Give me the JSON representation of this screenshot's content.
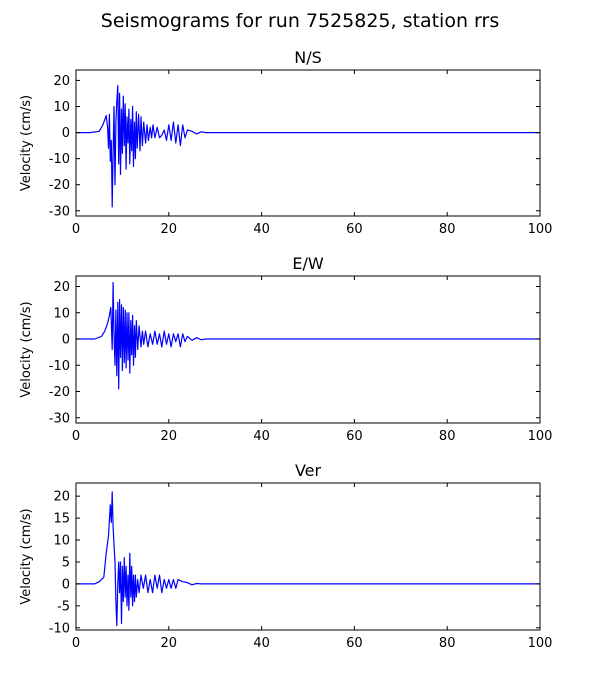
{
  "figure": {
    "title": "Seismograms for run 7525825, station rrs"
  },
  "chart_data": [
    {
      "type": "line",
      "title": "N/S",
      "xlabel": "",
      "ylabel": "Velocity (cm/s)",
      "xlim": [
        0,
        100
      ],
      "ylim": [
        -32,
        24
      ],
      "xticks": [
        0,
        20,
        40,
        60,
        80,
        100
      ],
      "yticks": [
        -30,
        -20,
        -10,
        0,
        10,
        20
      ],
      "grid": false,
      "color": "#0000ff",
      "x": [
        0,
        3,
        5,
        5.8,
        6.2,
        6.5,
        6.8,
        7.0,
        7.2,
        7.4,
        7.6,
        7.8,
        8.0,
        8.2,
        8.4,
        8.6,
        8.8,
        9.0,
        9.2,
        9.4,
        9.6,
        9.8,
        10.0,
        10.2,
        10.4,
        10.6,
        10.8,
        11.0,
        11.2,
        11.4,
        11.6,
        11.8,
        12.0,
        12.2,
        12.4,
        12.6,
        12.8,
        13.0,
        13.2,
        13.5,
        13.8,
        14.0,
        14.3,
        14.6,
        15.0,
        15.3,
        15.6,
        16.0,
        16.3,
        16.6,
        17.0,
        17.5,
        18.0,
        18.5,
        19.0,
        19.5,
        20.0,
        20.5,
        21.0,
        21.5,
        22.0,
        22.5,
        23.0,
        23.5,
        24.0,
        25.0,
        26.0,
        27.0,
        28.0,
        30.0,
        100
      ],
      "y": [
        0,
        0,
        0.5,
        3,
        5,
        6.5,
        2,
        -6,
        7,
        -11,
        -3,
        -28.5,
        -8,
        10,
        -20,
        4,
        12,
        18,
        -12,
        15,
        -16,
        9,
        -8,
        14,
        -5,
        11,
        -14,
        6,
        -4,
        9,
        -12,
        5,
        -7,
        10,
        -13,
        4,
        -10,
        8,
        -6,
        7,
        -7,
        6,
        -5,
        4,
        -4,
        3,
        -3,
        2,
        -2,
        3,
        -2,
        2,
        -2,
        -1,
        1,
        -3,
        3,
        -3,
        4,
        -4,
        3,
        -5,
        3,
        -2,
        1,
        0.5,
        -0.5,
        0.3,
        0,
        0,
        0
      ]
    },
    {
      "type": "line",
      "title": "E/W",
      "xlabel": "",
      "ylabel": "Velocity (cm/s)",
      "xlim": [
        0,
        100
      ],
      "ylim": [
        -32,
        24
      ],
      "xticks": [
        0,
        20,
        40,
        60,
        80,
        100
      ],
      "yticks": [
        -30,
        -20,
        -10,
        0,
        10,
        20
      ],
      "grid": false,
      "color": "#0000ff",
      "x": [
        0,
        4,
        5.5,
        6.2,
        6.8,
        7.2,
        7.5,
        7.8,
        8.0,
        8.2,
        8.4,
        8.6,
        8.8,
        9.0,
        9.2,
        9.4,
        9.6,
        9.8,
        10.0,
        10.2,
        10.4,
        10.6,
        10.8,
        11.0,
        11.2,
        11.4,
        11.6,
        11.8,
        12.0,
        12.2,
        12.4,
        12.6,
        12.8,
        13.0,
        13.3,
        13.6,
        14.0,
        14.3,
        14.6,
        15.0,
        15.5,
        16.0,
        16.5,
        17.0,
        17.5,
        18.0,
        18.5,
        19.0,
        19.5,
        20.0,
        20.5,
        21.0,
        21.5,
        22.0,
        22.5,
        23.0,
        23.5,
        24.0,
        25.0,
        26.0,
        27.0,
        28.0,
        30.0,
        100
      ],
      "y": [
        0,
        0,
        1,
        3,
        6,
        9,
        12,
        -4,
        21.5,
        2,
        -10,
        11,
        -14,
        14,
        -19,
        15,
        -7,
        13,
        -12,
        12,
        -9,
        11,
        -11,
        10,
        -8,
        10,
        -13,
        7,
        -6,
        9,
        -10,
        5,
        -7,
        7,
        -4,
        5,
        -3,
        3,
        -2,
        3,
        -3,
        2,
        -2,
        3,
        -2,
        2,
        -3,
        3,
        -2,
        2,
        -3,
        2,
        -1,
        2,
        -3,
        2,
        -1,
        1,
        -0.5,
        0.5,
        -0.3,
        0,
        0,
        0
      ]
    },
    {
      "type": "line",
      "title": "Ver",
      "xlabel": "",
      "ylabel": "Velocity (cm/s)",
      "xlim": [
        0,
        100
      ],
      "ylim": [
        -10.5,
        23
      ],
      "xticks": [
        0,
        20,
        40,
        60,
        80,
        100
      ],
      "yticks": [
        -10,
        -5,
        0,
        5,
        10,
        15,
        20
      ],
      "grid": false,
      "color": "#0000ff",
      "x": [
        0,
        4,
        5,
        6,
        6.5,
        7.0,
        7.4,
        7.6,
        7.8,
        8.0,
        8.2,
        8.4,
        8.6,
        8.8,
        9.0,
        9.2,
        9.4,
        9.6,
        9.8,
        10.0,
        10.2,
        10.4,
        10.6,
        10.8,
        11.0,
        11.2,
        11.4,
        11.6,
        11.8,
        12.0,
        12.2,
        12.4,
        12.6,
        12.8,
        13.0,
        13.3,
        13.6,
        14.0,
        14.5,
        15.0,
        15.5,
        16.0,
        16.5,
        17.0,
        17.5,
        18.0,
        18.5,
        19.0,
        19.5,
        20.0,
        20.5,
        21.0,
        21.5,
        22.0,
        23.0,
        24.0,
        25.0,
        26.0,
        27.0,
        28.0,
        30.0,
        100
      ],
      "y": [
        0,
        0,
        0.5,
        1.5,
        7,
        11,
        18,
        14,
        21,
        13,
        9,
        5,
        -4,
        -9.5,
        0,
        5,
        -2,
        5,
        -9,
        4,
        -4,
        6,
        -3,
        4,
        -5,
        2,
        -6,
        7,
        -3,
        4,
        -5,
        2,
        -4,
        2,
        -3,
        1,
        -2,
        2,
        -1,
        2,
        -2,
        1,
        -2,
        2,
        -1,
        2,
        -2,
        1,
        -1,
        1,
        -1,
        1,
        -1,
        1,
        0.5,
        0.3,
        -0.2,
        0.1,
        0,
        0,
        0,
        0
      ]
    }
  ]
}
